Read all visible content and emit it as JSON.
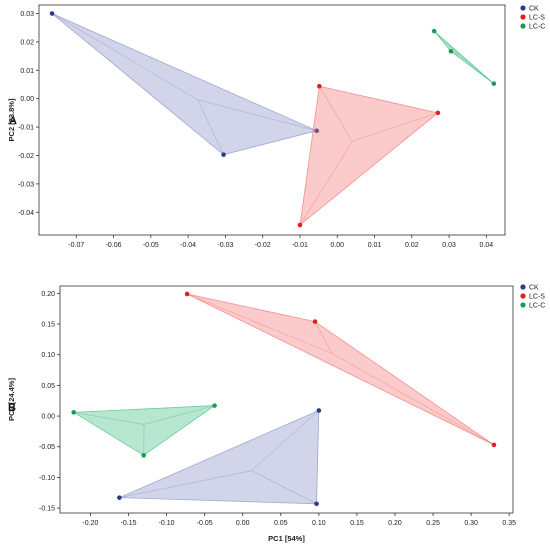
{
  "chart_data": [
    {
      "panel_label": "A",
      "type": "scatter",
      "ylabel": "PC2 [23.8%]",
      "xlabel": "",
      "xlim": [
        -0.08,
        0.045
      ],
      "ylim": [
        -0.048,
        0.033
      ],
      "x_ticks": [
        "-0.07",
        "-0.06",
        "-0.05",
        "-0.04",
        "-0.03",
        "-0.02",
        "-0.01",
        "0.00",
        "0.01",
        "0.02",
        "0.03",
        "0.04"
      ],
      "x_tick_values": [
        -0.07,
        -0.06,
        -0.05,
        -0.04,
        -0.03,
        -0.02,
        -0.01,
        0.0,
        0.01,
        0.02,
        0.03,
        0.04
      ],
      "y_ticks": [
        "0.03",
        "0.02",
        "0.01",
        "0.00",
        "-0.01",
        "-0.02",
        "-0.03",
        "-0.04"
      ],
      "y_tick_values": [
        0.03,
        0.02,
        0.01,
        0.0,
        -0.01,
        -0.02,
        -0.03,
        -0.04
      ],
      "grid": false,
      "legend_position": "top-right",
      "series": [
        {
          "name": "CK",
          "color": "#2b3a8c",
          "fill": "#8e97c9",
          "points": [
            [
              -0.0765,
              0.03
            ],
            [
              -0.0305,
              -0.0197
            ],
            [
              -0.0055,
              -0.0113
            ]
          ]
        },
        {
          "name": "LC-S",
          "color": "#e0201c",
          "fill": "#f47b7b",
          "points": [
            [
              -0.0048,
              0.0044
            ],
            [
              0.027,
              -0.005
            ],
            [
              -0.01,
              -0.0445
            ]
          ]
        },
        {
          "name": "LC-C",
          "color": "#1a9a54",
          "fill": "#4cc28a",
          "points": [
            [
              0.026,
              0.0238
            ],
            [
              0.0305,
              0.0167
            ],
            [
              0.042,
              0.0053
            ]
          ]
        }
      ]
    },
    {
      "panel_label": "B",
      "type": "scatter",
      "ylabel": "PC2 [24.4%]",
      "xlabel": "PC1 [54%]",
      "xlim": [
        -0.24,
        0.355
      ],
      "ylim": [
        -0.158,
        0.212
      ],
      "x_ticks": [
        "-0.20",
        "-0.15",
        "-0.10",
        "-0.05",
        "0.00",
        "0.05",
        "0.10",
        "0.15",
        "0.20",
        "0.25",
        "0.30",
        "0.35"
      ],
      "x_tick_values": [
        -0.2,
        -0.15,
        -0.1,
        -0.05,
        0.0,
        0.05,
        0.1,
        0.15,
        0.2,
        0.25,
        0.3,
        0.35
      ],
      "y_ticks": [
        "0.20",
        "0.15",
        "0.10",
        "0.05",
        "0.00",
        "-0.05",
        "-0.10",
        "-0.15"
      ],
      "y_tick_values": [
        0.2,
        0.15,
        0.1,
        0.05,
        0.0,
        -0.05,
        -0.1,
        -0.15
      ],
      "grid": false,
      "legend_position": "top-right",
      "series": [
        {
          "name": "CK",
          "color": "#2b3a8c",
          "fill": "#8e97c9",
          "points": [
            [
              -0.162,
              -0.133
            ],
            [
              0.1,
              0.009
            ],
            [
              0.097,
              -0.143
            ]
          ]
        },
        {
          "name": "LC-S",
          "color": "#e0201c",
          "fill": "#f47b7b",
          "points": [
            [
              -0.073,
              0.199
            ],
            [
              0.095,
              0.154
            ],
            [
              0.33,
              -0.047
            ]
          ]
        },
        {
          "name": "LC-C",
          "color": "#1a9a54",
          "fill": "#4cc28a",
          "points": [
            [
              -0.222,
              0.006
            ],
            [
              -0.037,
              0.017
            ],
            [
              -0.13,
              -0.064
            ]
          ]
        }
      ]
    }
  ]
}
